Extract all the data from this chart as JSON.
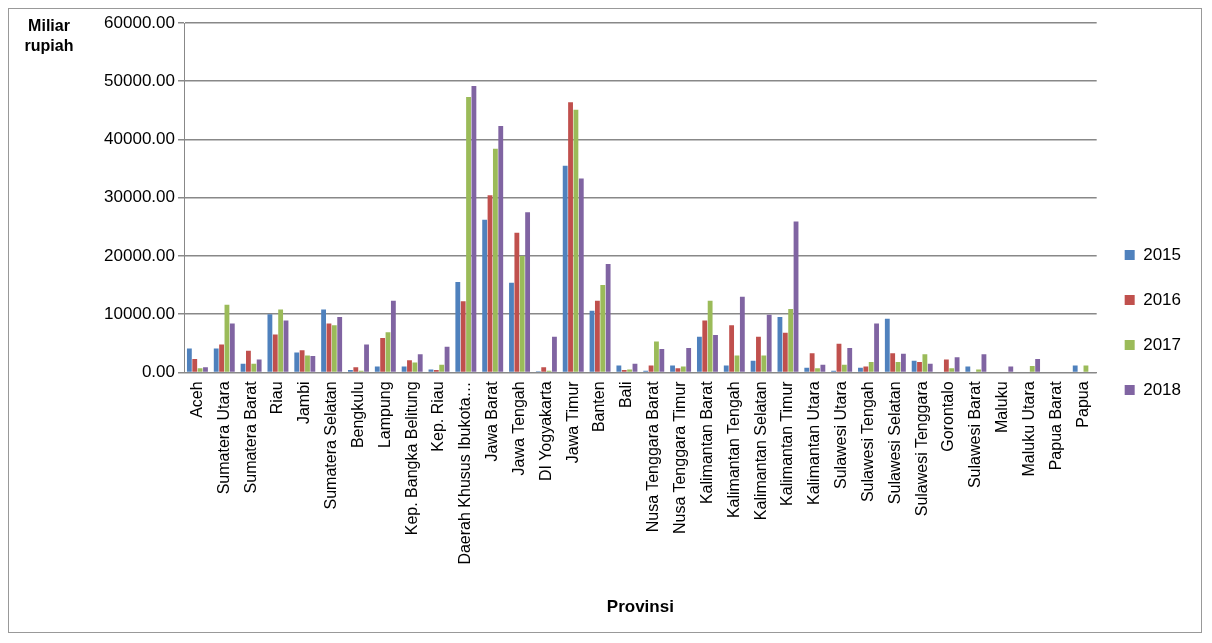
{
  "chart_data": {
    "type": "bar",
    "xlabel": "Provinsi",
    "ylabel": "Miliar rupiah",
    "categories": [
      "Aceh",
      "Sumatera Utara",
      "Sumatera Barat",
      "Riau",
      "Jambi",
      "Sumatera Selatan",
      "Bengkulu",
      "Lampung",
      "Kep. Bangka Belitung",
      "Kep. Riau",
      "Daerah Khusus Ibukota…",
      "Jawa Barat",
      "Jawa Tengah",
      "DI Yogyakarta",
      "Jawa Timur",
      "Banten",
      "Bali",
      "Nusa Tenggara Barat",
      "Nusa Tenggara Timur",
      "Kalimantan Barat",
      "Kalimantan Tengah",
      "Kalimantan Selatan",
      "Kalimantan Timur",
      "Kalimantan Utara",
      "Sulawesi Utara",
      "Sulawesi Tengah",
      "Sulawesi Selatan",
      "Sulawesi Tenggara",
      "Gorontalo",
      "Sulawesi Barat",
      "Maluku",
      "Maluku Utara",
      "Papua Barat",
      "Papua"
    ],
    "series": [
      {
        "name": "2015",
        "color": "#4f81bd",
        "values": [
          4100,
          4100,
          1500,
          10000,
          3400,
          10800,
          400,
          1000,
          1000,
          500,
          15500,
          26200,
          15400,
          200,
          35500,
          10600,
          1200,
          300,
          1200,
          6100,
          1200,
          2000,
          9500,
          800,
          300,
          800,
          9200,
          2000,
          null,
          1000,
          null,
          null,
          null,
          1200
        ]
      },
      {
        "name": "2016",
        "color": "#c0504d",
        "values": [
          2300,
          4800,
          3700,
          6500,
          3800,
          8400,
          900,
          5900,
          2100,
          400,
          12200,
          30400,
          24000,
          900,
          46400,
          12300,
          400,
          1200,
          700,
          8900,
          8100,
          6100,
          6800,
          3300,
          4900,
          1000,
          3300,
          1800,
          2200,
          null,
          null,
          null,
          null,
          null
        ]
      },
      {
        "name": "2017",
        "color": "#9bbb59",
        "values": [
          700,
          11600,
          1500,
          10800,
          2900,
          8100,
          300,
          6900,
          1700,
          1300,
          47300,
          38400,
          20000,
          300,
          45100,
          15000,
          500,
          5300,
          1000,
          12300,
          2900,
          2900,
          10900,
          700,
          1300,
          1800,
          1800,
          3100,
          700,
          500,
          null,
          1100,
          null,
          1200
        ]
      },
      {
        "name": "2018",
        "color": "#8064a2",
        "values": [
          900,
          8400,
          2200,
          8900,
          2800,
          9500,
          4800,
          12300,
          3100,
          4400,
          49200,
          42300,
          27500,
          6100,
          33300,
          18600,
          1500,
          4000,
          4200,
          6400,
          13000,
          9900,
          25900,
          1300,
          4200,
          8400,
          3200,
          1500,
          2600,
          3100,
          1000,
          2300,
          null,
          null
        ]
      }
    ],
    "ylim": [
      0,
      60000
    ],
    "yticks": [
      {
        "value": 0,
        "label": "0.00"
      },
      {
        "value": 10000,
        "label": "10000.00"
      },
      {
        "value": 20000,
        "label": "20000.00"
      },
      {
        "value": 30000,
        "label": "30000.00"
      },
      {
        "value": 40000,
        "label": "40000.00"
      },
      {
        "value": 50000,
        "label": "50000.00"
      },
      {
        "value": 60000,
        "label": "60000.00"
      }
    ],
    "grid": "y",
    "legend": "right"
  }
}
